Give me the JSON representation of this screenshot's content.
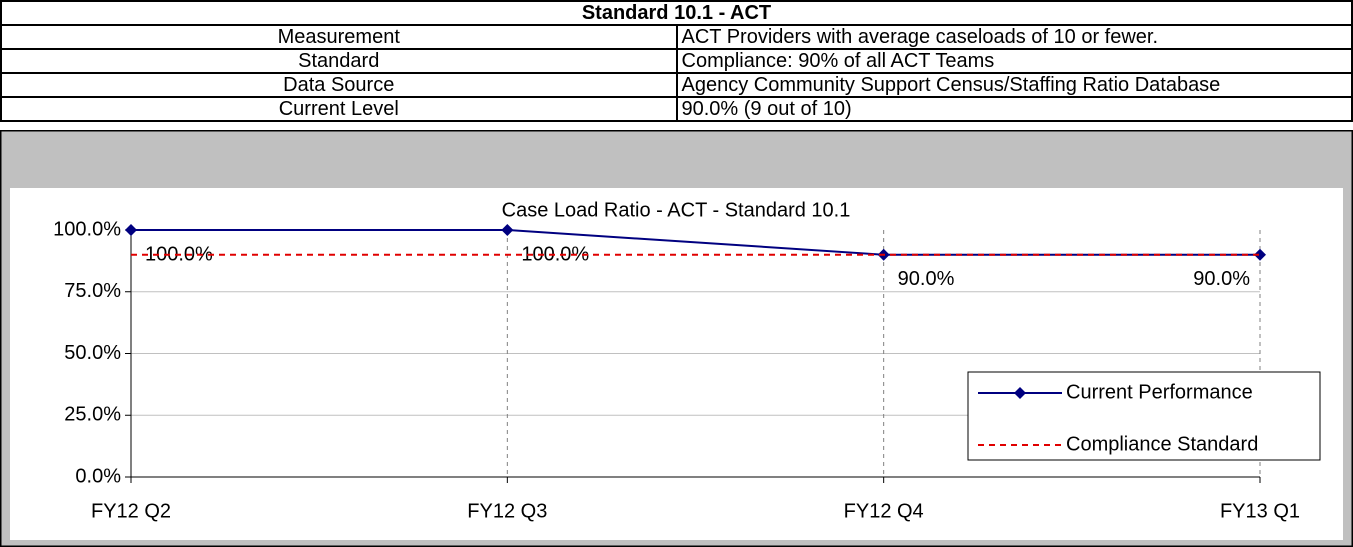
{
  "table": {
    "title": "Standard 10.1 - ACT",
    "rows": [
      [
        "Measurement",
        "ACT Providers with average caseloads of 10 or fewer."
      ],
      [
        "Standard",
        "Compliance: 90% of all ACT Teams"
      ],
      [
        "Data Source",
        "Agency Community Support Census/Staffing Ratio Database"
      ],
      [
        "Current Level",
        "90.0% (9 out of 10)"
      ]
    ]
  },
  "chart_data": {
    "type": "line",
    "title": "Case Load Ratio - ACT - Standard 10.1",
    "categories": [
      "FY12 Q2",
      "FY12 Q3",
      "FY12 Q4",
      "FY13 Q1"
    ],
    "series": [
      {
        "name": "Current Performance",
        "color": "#000080",
        "values": [
          100,
          100,
          90,
          90
        ],
        "value_labels": [
          "100.0%",
          "100.0%",
          "90.0%",
          "90.0%"
        ]
      },
      {
        "name": "Compliance Standard",
        "color": "#e00000",
        "values": [
          90,
          90,
          90,
          90
        ],
        "dashed": true
      }
    ],
    "ylim": [
      0,
      100
    ],
    "yticks": [
      {
        "value": 0,
        "label": "0.0%"
      },
      {
        "value": 25,
        "label": "25.0%"
      },
      {
        "value": 50,
        "label": "50.0%"
      },
      {
        "value": 75,
        "label": "75.0%"
      },
      {
        "value": 100,
        "label": "100.0%"
      }
    ],
    "grid": true,
    "legend": "right"
  }
}
